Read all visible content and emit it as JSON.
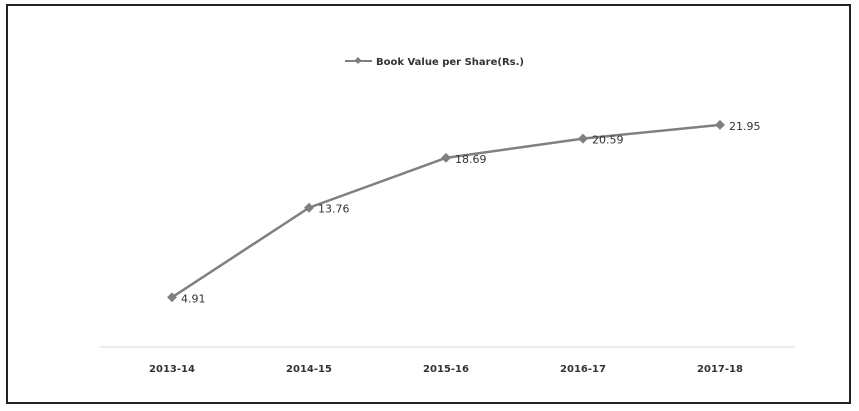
{
  "chart_data": {
    "type": "line",
    "categories": [
      "2013-14",
      "2014-15",
      "2015-16",
      "2016-17",
      "2017-18"
    ],
    "series": [
      {
        "name": "Book Value per Share(Rs.)",
        "values": [
          4.91,
          13.76,
          18.69,
          20.59,
          21.95
        ]
      }
    ],
    "data_labels": [
      "4.91",
      "13.76",
      "18.69",
      "20.59",
      "21.95"
    ],
    "legend": {
      "position": "top",
      "label": "Book Value per Share(Rs.)"
    },
    "ylim": [
      0,
      25
    ],
    "grid": false,
    "colors": {
      "line": "#808080",
      "marker": "#808080",
      "axis": "#d9d9d9"
    }
  }
}
